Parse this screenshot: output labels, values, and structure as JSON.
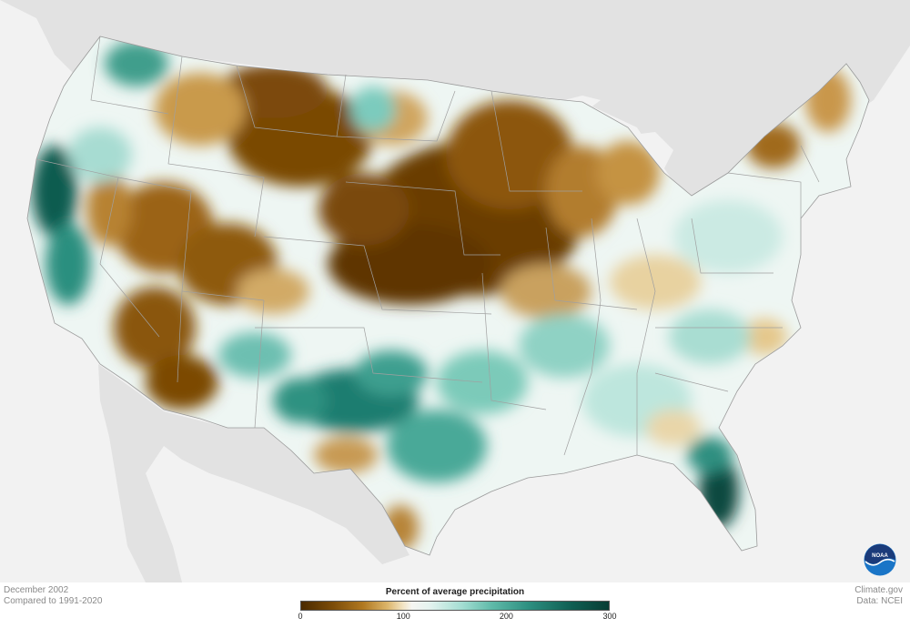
{
  "map": {
    "background_land_color": "#e2e2e2",
    "background_water_color": "#f2f2f2",
    "border_color": "#9a9a9a"
  },
  "palette": {
    "very_dry": "#5a3300",
    "dry": "#9a6414",
    "somewhat_dry": "#d6ad62",
    "near_normal": "#f6f3ea",
    "somewhat_wet": "#bfe7df",
    "wet": "#4fae9e",
    "very_wet": "#0b4f45"
  },
  "info": {
    "date": "December 2002",
    "comparison": "Compared to 1991-2020"
  },
  "credits": {
    "site": "Climate.gov",
    "data": "Data: NCEI"
  },
  "legend": {
    "title": "Percent of average precipitation",
    "ticks": [
      "0",
      "100",
      "200",
      "300"
    ]
  },
  "logo": {
    "text": "NOAA"
  }
}
